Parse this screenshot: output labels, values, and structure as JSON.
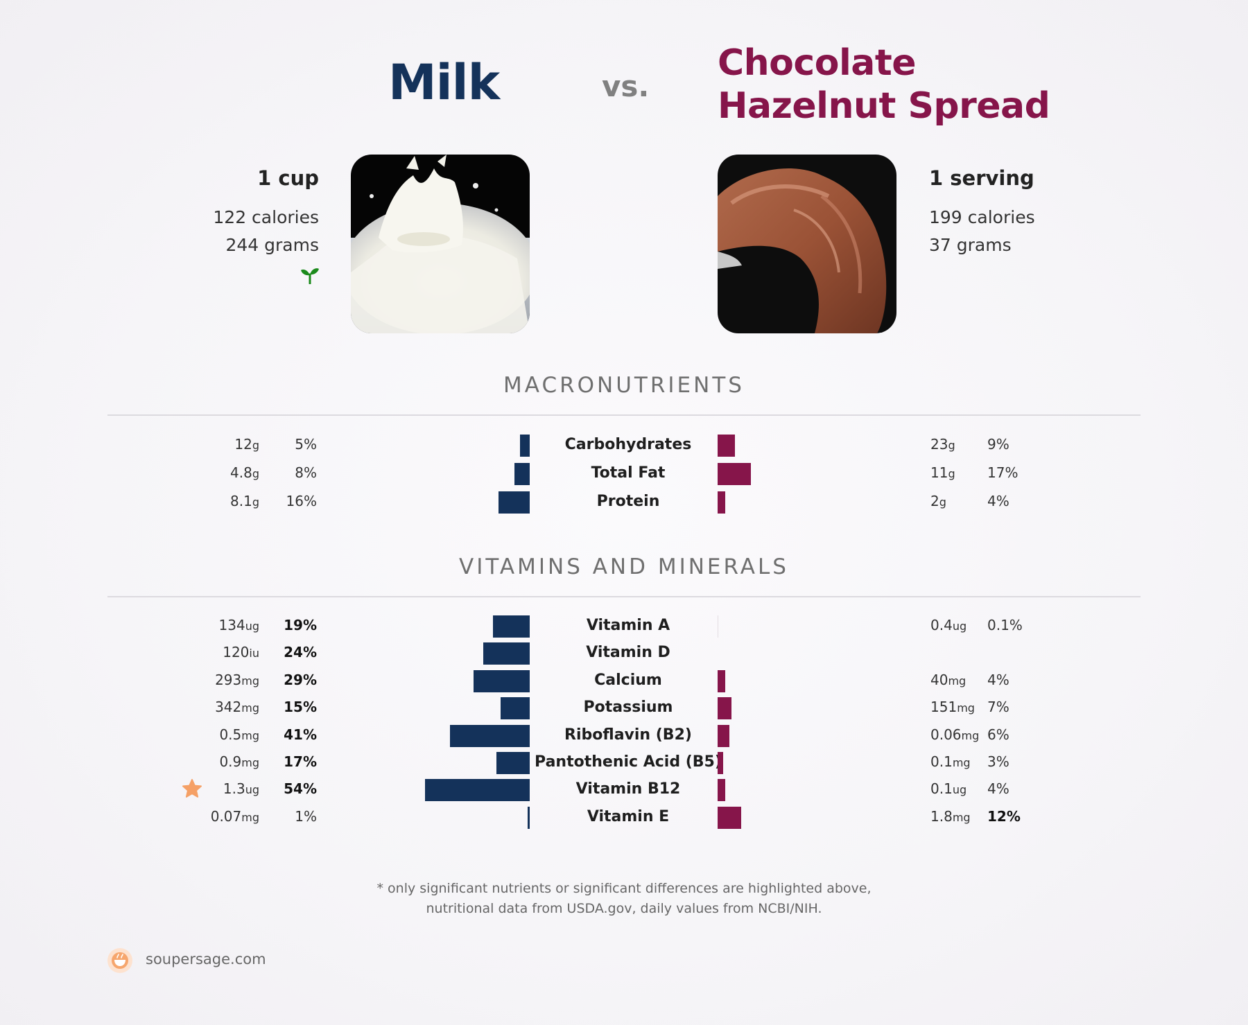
{
  "header": {
    "left_name": "Milk",
    "vs": "vs.",
    "right_name_line1": "Chocolate",
    "right_name_line2": "Hazelnut Spread"
  },
  "left_food": {
    "serving": "1 cup",
    "calories": "122 calories",
    "grams": "244 grams",
    "icon": "sprout-icon",
    "icon_color": "#1b8a1b"
  },
  "right_food": {
    "serving": "1 serving",
    "calories": "199 calories",
    "grams": "37 grams"
  },
  "colors": {
    "left": "#14325a",
    "right": "#86154a",
    "star": "#f5a066"
  },
  "sections": {
    "macros_title": "MACRONUTRIENTS",
    "vitamins_title": "VITAMINS AND MINERALS"
  },
  "chart_data": {
    "type": "bar",
    "macros": [
      {
        "name": "Carbohydrates",
        "left_amount": "12",
        "left_unit": "g",
        "left_pct": 5,
        "left_pct_label": "5%",
        "right_amount": "23",
        "right_unit": "g",
        "right_pct": 9,
        "right_pct_label": "9%"
      },
      {
        "name": "Total Fat",
        "left_amount": "4.8",
        "left_unit": "g",
        "left_pct": 8,
        "left_pct_label": "8%",
        "right_amount": "11",
        "right_unit": "g",
        "right_pct": 17,
        "right_pct_label": "17%"
      },
      {
        "name": "Protein",
        "left_amount": "8.1",
        "left_unit": "g",
        "left_pct": 16,
        "left_pct_label": "16%",
        "right_amount": "2",
        "right_unit": "g",
        "right_pct": 4,
        "right_pct_label": "4%"
      }
    ],
    "vitamins": [
      {
        "name": "Vitamin A",
        "left_amount": "134",
        "left_unit": "ug",
        "left_pct": 19,
        "left_pct_label": "19%",
        "left_bold": true,
        "right_amount": "0.4",
        "right_unit": "ug",
        "right_pct": 0.1,
        "right_pct_label": "0.1%",
        "right_bold": false
      },
      {
        "name": "Vitamin D",
        "left_amount": "120",
        "left_unit": "iu",
        "left_pct": 24,
        "left_pct_label": "24%",
        "left_bold": true,
        "right_amount": "",
        "right_unit": "",
        "right_pct": 0,
        "right_pct_label": "",
        "right_bold": false
      },
      {
        "name": "Calcium",
        "left_amount": "293",
        "left_unit": "mg",
        "left_pct": 29,
        "left_pct_label": "29%",
        "left_bold": true,
        "right_amount": "40",
        "right_unit": "mg",
        "right_pct": 4,
        "right_pct_label": "4%",
        "right_bold": false
      },
      {
        "name": "Potassium",
        "left_amount": "342",
        "left_unit": "mg",
        "left_pct": 15,
        "left_pct_label": "15%",
        "left_bold": true,
        "right_amount": "151",
        "right_unit": "mg",
        "right_pct": 7,
        "right_pct_label": "7%",
        "right_bold": false
      },
      {
        "name": "Riboflavin (B2)",
        "left_amount": "0.5",
        "left_unit": "mg",
        "left_pct": 41,
        "left_pct_label": "41%",
        "left_bold": true,
        "right_amount": "0.06",
        "right_unit": "mg",
        "right_pct": 6,
        "right_pct_label": "6%",
        "right_bold": false
      },
      {
        "name": "Pantothenic Acid (B5)",
        "left_amount": "0.9",
        "left_unit": "mg",
        "left_pct": 17,
        "left_pct_label": "17%",
        "left_bold": true,
        "right_amount": "0.1",
        "right_unit": "mg",
        "right_pct": 3,
        "right_pct_label": "3%",
        "right_bold": false
      },
      {
        "name": "Vitamin B12",
        "left_amount": "1.3",
        "left_unit": "ug",
        "left_pct": 54,
        "left_pct_label": "54%",
        "left_bold": true,
        "right_amount": "0.1",
        "right_unit": "ug",
        "right_pct": 4,
        "right_pct_label": "4%",
        "right_bold": false,
        "star": true
      },
      {
        "name": "Vitamin E",
        "left_amount": "0.07",
        "left_unit": "mg",
        "left_pct": 1,
        "left_pct_label": "1%",
        "left_bold": false,
        "right_amount": "1.8",
        "right_unit": "mg",
        "right_pct": 12,
        "right_pct_label": "12%",
        "right_bold": true
      }
    ]
  },
  "footer": {
    "note_line1": "* only significant nutrients or significant differences are highlighted above,",
    "note_line2": "nutritional data from USDA.gov, daily values from NCBI/NIH.",
    "brand": "soupersage.com",
    "logo_icon": "soupersage-logo-icon"
  }
}
